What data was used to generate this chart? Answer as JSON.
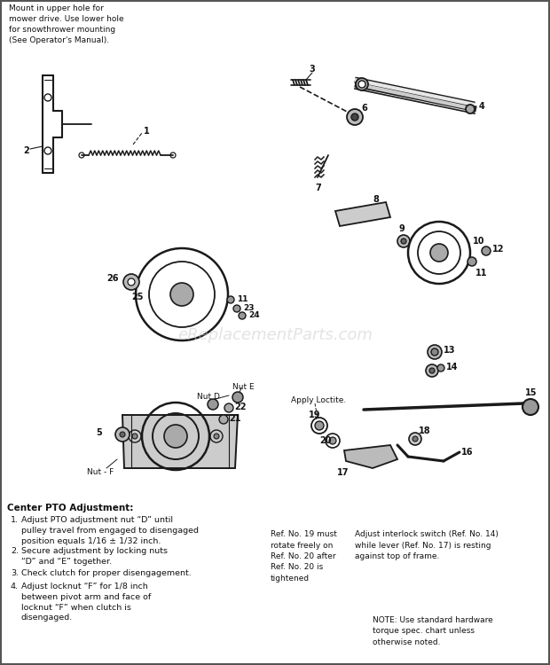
{
  "bg_color": "#ffffff",
  "watermark": "eReplacementParts.com",
  "top_note": "Mount in upper hole for\nmower drive. Use lower hole\nfor snowthrower mounting\n(See Operator's Manual).",
  "bottom_left_title": "Center PTO Adjustment:",
  "bottom_left_items": [
    "Adjust PTO adjustment nut “D” until\npulley travel from engaged to disengaged\nposition equals 1/16 ± 1/32 inch.",
    "Secure adjustment by locking nuts\n“D” and “E” together.",
    "Check clutch for proper disengagement.",
    "Adjust locknut “F” for 1/8 inch\nbetween pivot arm and face of\nlocknut “F” when clutch is\ndisengaged."
  ],
  "bottom_mid_note": "Ref. No. 19 must\nrotate freely on\nRef. No. 20 after\nRef. No. 20 is\ntightened",
  "bottom_right_note1": "Adjust interlock switch (Ref. No. 14)\nwhile lever (Ref. No. 17) is resting\nagainst top of frame.",
  "bottom_right_note2": "NOTE: Use standard hardware\ntorque spec. chart unless\notherwise noted.",
  "apply_loctite": "Apply Loctite.",
  "nut_d_label": "Nut D",
  "nut_e_label": "Nut E",
  "nut_f_label": "Nut - F",
  "line_color": "#1a1a1a",
  "text_color": "#111111"
}
